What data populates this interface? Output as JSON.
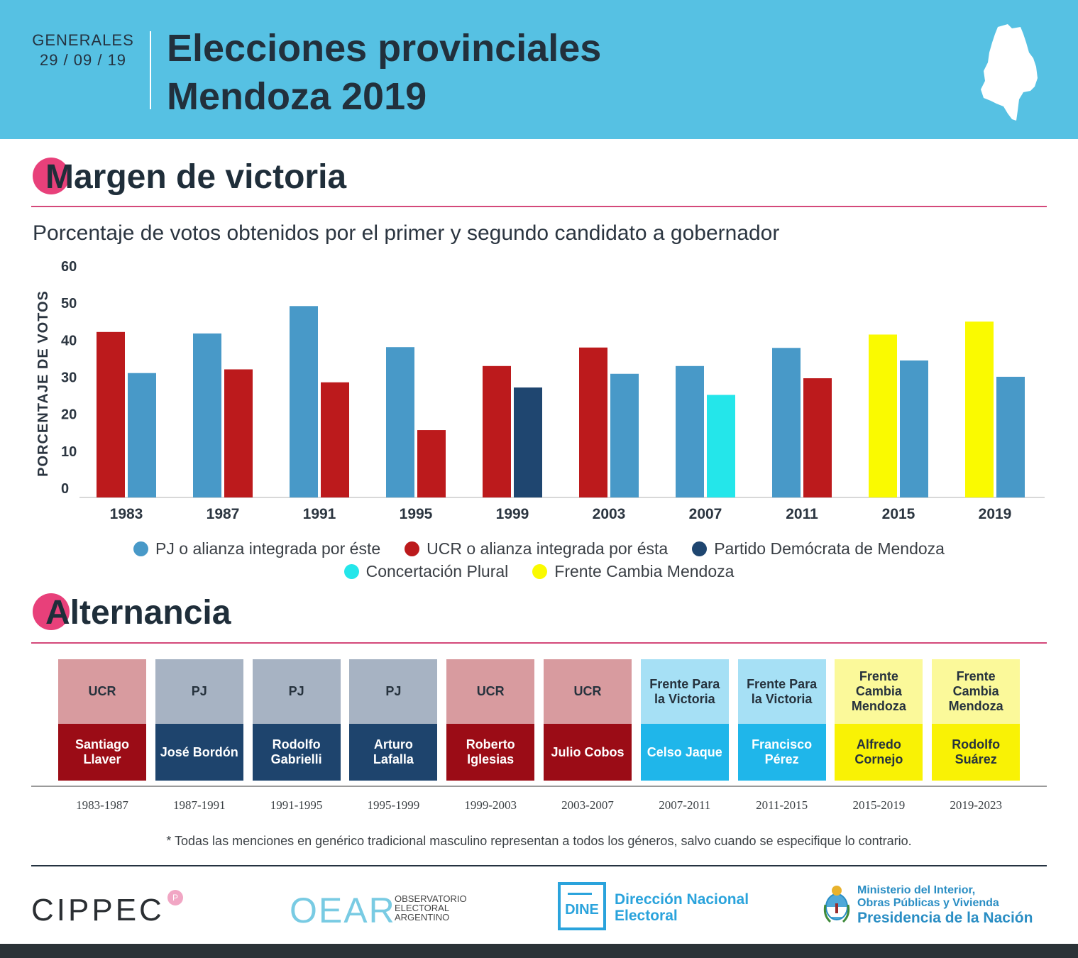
{
  "header": {
    "kicker": "GENERALES",
    "date": "29 / 09 / 19",
    "title_line1": "Elecciones provinciales",
    "title_line2": "Mendoza 2019"
  },
  "section1": {
    "title": "Margen de victoria",
    "subtitle": "Porcentaje de votos obtenidos por el primer y segundo candidato a gobernador"
  },
  "colors": {
    "PJ": "#4899c8",
    "UCR": "#bc1a1c",
    "PD": "#1f4670",
    "CP": "#24e6ea",
    "FCM": "#fafa00"
  },
  "chart_data": {
    "type": "bar",
    "ylabel": "PORCENTAJE DE VOTOS",
    "ylim": [
      0,
      60
    ],
    "yticks": [
      0,
      10,
      20,
      30,
      40,
      50,
      60
    ],
    "categories": [
      "1983",
      "1987",
      "1991",
      "1995",
      "1999",
      "2003",
      "2007",
      "2011",
      "2015",
      "2019"
    ],
    "first": [
      {
        "party": "UCR",
        "value": 44.7
      },
      {
        "party": "PJ",
        "value": 44.3
      },
      {
        "party": "PJ",
        "value": 51.7
      },
      {
        "party": "PJ",
        "value": 40.6
      },
      {
        "party": "UCR",
        "value": 35.5
      },
      {
        "party": "UCR",
        "value": 40.5
      },
      {
        "party": "PJ",
        "value": 35.5
      },
      {
        "party": "PJ",
        "value": 40.4
      },
      {
        "party": "FCM",
        "value": 44.0
      },
      {
        "party": "FCM",
        "value": 47.5
      }
    ],
    "second": [
      {
        "party": "PJ",
        "value": 33.6
      },
      {
        "party": "UCR",
        "value": 34.6
      },
      {
        "party": "UCR",
        "value": 31.1
      },
      {
        "party": "UCR",
        "value": 18.2
      },
      {
        "party": "PD",
        "value": 29.7
      },
      {
        "party": "PJ",
        "value": 33.4
      },
      {
        "party": "CP",
        "value": 27.7
      },
      {
        "party": "UCR",
        "value": 32.2
      },
      {
        "party": "PJ",
        "value": 37.0
      },
      {
        "party": "PJ",
        "value": 32.6
      }
    ],
    "legend": [
      {
        "key": "PJ",
        "label": "PJ o alianza integrada por éste"
      },
      {
        "key": "UCR",
        "label": "UCR o alianza integrada por ésta"
      },
      {
        "key": "PD",
        "label": "Partido Demócrata de Mendoza"
      },
      {
        "key": "CP",
        "label": "Concertación Plural"
      },
      {
        "key": "FCM",
        "label": "Frente Cambia Mendoza"
      }
    ]
  },
  "section2": {
    "title": "Alternancia",
    "terms": [
      {
        "party": "UCR",
        "governor": "Santiago Llaver",
        "years": "1983-1987",
        "top_color": "#d89b9f",
        "bottom_color": "#9b0c16",
        "text_color": "#ffffff"
      },
      {
        "party": "PJ",
        "governor": "José Bordón",
        "years": "1987-1991",
        "top_color": "#a7b3c3",
        "bottom_color": "#1e446d",
        "text_color": "#ffffff"
      },
      {
        "party": "PJ",
        "governor": "Rodolfo Gabrielli",
        "years": "1991-1995",
        "top_color": "#a7b3c3",
        "bottom_color": "#1e446d",
        "text_color": "#ffffff"
      },
      {
        "party": "PJ",
        "governor": "Arturo Lafalla",
        "years": "1995-1999",
        "top_color": "#a7b3c3",
        "bottom_color": "#1e446d",
        "text_color": "#ffffff"
      },
      {
        "party": "UCR",
        "governor": "Roberto Iglesias",
        "years": "1999-2003",
        "top_color": "#d89b9f",
        "bottom_color": "#9b0c16",
        "text_color": "#ffffff"
      },
      {
        "party": "UCR",
        "governor": "Julio Cobos",
        "years": "2003-2007",
        "top_color": "#d89b9f",
        "bottom_color": "#9b0c16",
        "text_color": "#ffffff"
      },
      {
        "party": "Frente Para la Victoria",
        "governor": "Celso Jaque",
        "years": "2007-2011",
        "top_color": "#a6e0f5",
        "bottom_color": "#1fb6ea",
        "text_color": "#ffffff"
      },
      {
        "party": "Frente Para la Victoria",
        "governor": "Francisco Pérez",
        "years": "2011-2015",
        "top_color": "#a6e0f5",
        "bottom_color": "#1fb6ea",
        "text_color": "#ffffff"
      },
      {
        "party": "Frente Cambia Mendoza",
        "governor": "Alfredo Cornejo",
        "years": "2015-2019",
        "top_color": "#fbf99a",
        "bottom_color": "#f9f205",
        "text_color": "#26323d"
      },
      {
        "party": "Frente Cambia Mendoza",
        "governor": "Rodolfo Suárez",
        "years": "2019-2023",
        "top_color": "#fbf99a",
        "bottom_color": "#f9f205",
        "text_color": "#26323d"
      }
    ]
  },
  "footnote": "* Todas las menciones en genérico tradicional masculino representan a todos los géneros, salvo cuando se especifique lo contrario.",
  "logos": {
    "cippec": "CIPPEC",
    "cippec_badge": "P",
    "oear": "OEAR",
    "oear_sub": [
      "OBSERVATORIO",
      "ELECTORAL",
      "ARGENTINO"
    ],
    "dine_box": "DINE",
    "dine_name": [
      "Dirección Nacional",
      "Electoral"
    ],
    "ministerio": [
      "Ministerio del Interior,",
      "Obras Públicas y Vivienda",
      "Presidencia de la Nación"
    ]
  }
}
